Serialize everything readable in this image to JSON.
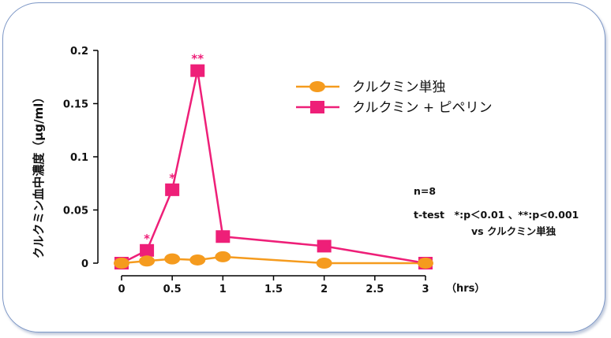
{
  "colors": {
    "series1": "#f59b1e",
    "series2": "#ee1f78",
    "border": "#7d97c6"
  },
  "chart_data": {
    "type": "line",
    "ylabel": "クルクミン血中濃度（μg/ml）",
    "xunit": "（hrs）",
    "xlim": [
      0,
      3
    ],
    "ylim": [
      0,
      0.2
    ],
    "xticks": [
      0,
      0.5,
      1,
      1.5,
      2,
      2.5,
      3
    ],
    "xtick_labels": [
      "0",
      "0.5",
      "1",
      "1.5",
      "2",
      "2.5",
      "3"
    ],
    "yticks": [
      0,
      0.05,
      0.1,
      0.15,
      0.2
    ],
    "ytick_labels": [
      "0",
      "0.05",
      "0.1",
      "0.15",
      "0.2"
    ],
    "legend_position": "top-right",
    "series": [
      {
        "name": "クルクミン単独",
        "marker": "circle",
        "color": "#f59b1e",
        "x": [
          0,
          0.25,
          0.5,
          0.75,
          1,
          2,
          3
        ],
        "y": [
          0,
          0.002,
          0.004,
          0.003,
          0.006,
          0,
          0
        ]
      },
      {
        "name": "クルクミン + ピペリン",
        "marker": "square",
        "color": "#ee1f78",
        "x": [
          0,
          0.25,
          0.5,
          0.75,
          1,
          2,
          3
        ],
        "y": [
          0,
          0.012,
          0.069,
          0.181,
          0.025,
          0.016,
          0
        ]
      }
    ],
    "significance": [
      {
        "x": 0.25,
        "y": 0.012,
        "label": "*"
      },
      {
        "x": 0.5,
        "y": 0.069,
        "label": "*"
      },
      {
        "x": 0.75,
        "y": 0.181,
        "label": "**"
      }
    ],
    "annotations": {
      "n": "n=8",
      "test": "t-test　*:p＜0.01 、**:p<0.001",
      "vs": "vs クルクミン単独"
    }
  }
}
